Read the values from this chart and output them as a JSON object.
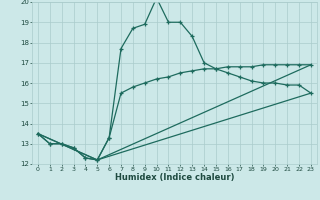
{
  "title": "",
  "xlabel": "Humidex (Indice chaleur)",
  "background_color": "#cce8e8",
  "grid_color": "#aacccc",
  "line_color": "#1e6b5e",
  "xlim": [
    -0.5,
    23.5
  ],
  "ylim": [
    12,
    20
  ],
  "xtick_labels": [
    "0",
    "1",
    "2",
    "3",
    "4",
    "5",
    "6",
    "7",
    "8",
    "9",
    "10",
    "11",
    "12",
    "13",
    "14",
    "15",
    "16",
    "17",
    "18",
    "19",
    "20",
    "21",
    "22",
    "23"
  ],
  "xtick_vals": [
    0,
    1,
    2,
    3,
    4,
    5,
    6,
    7,
    8,
    9,
    10,
    11,
    12,
    13,
    14,
    15,
    16,
    17,
    18,
    19,
    20,
    21,
    22,
    23
  ],
  "ytick_vals": [
    12,
    13,
    14,
    15,
    16,
    17,
    18,
    19,
    20
  ],
  "series1_x": [
    0,
    1,
    2,
    3,
    4,
    5,
    6,
    7,
    8,
    9,
    10,
    11,
    12,
    13,
    14,
    15,
    16,
    17,
    18,
    19,
    20,
    21,
    22,
    23
  ],
  "series1_y": [
    13.5,
    13.0,
    13.0,
    12.8,
    12.3,
    12.2,
    13.3,
    17.7,
    18.7,
    18.9,
    20.2,
    19.0,
    19.0,
    18.3,
    17.0,
    16.7,
    16.5,
    16.3,
    16.1,
    16.0,
    16.0,
    15.9,
    15.9,
    15.5
  ],
  "series2_x": [
    0,
    1,
    2,
    3,
    4,
    5,
    6,
    7,
    8,
    9,
    10,
    11,
    12,
    13,
    14,
    15,
    16,
    17,
    18,
    19,
    20,
    21,
    22,
    23
  ],
  "series2_y": [
    13.5,
    13.0,
    13.0,
    12.8,
    12.3,
    12.2,
    13.3,
    15.5,
    15.8,
    16.0,
    16.2,
    16.3,
    16.5,
    16.6,
    16.7,
    16.7,
    16.8,
    16.8,
    16.8,
    16.9,
    16.9,
    16.9,
    16.9,
    16.9
  ],
  "series3_x": [
    0,
    5,
    23
  ],
  "series3_y": [
    13.5,
    12.2,
    15.5
  ],
  "series4_x": [
    0,
    5,
    23
  ],
  "series4_y": [
    13.5,
    12.2,
    16.9
  ]
}
